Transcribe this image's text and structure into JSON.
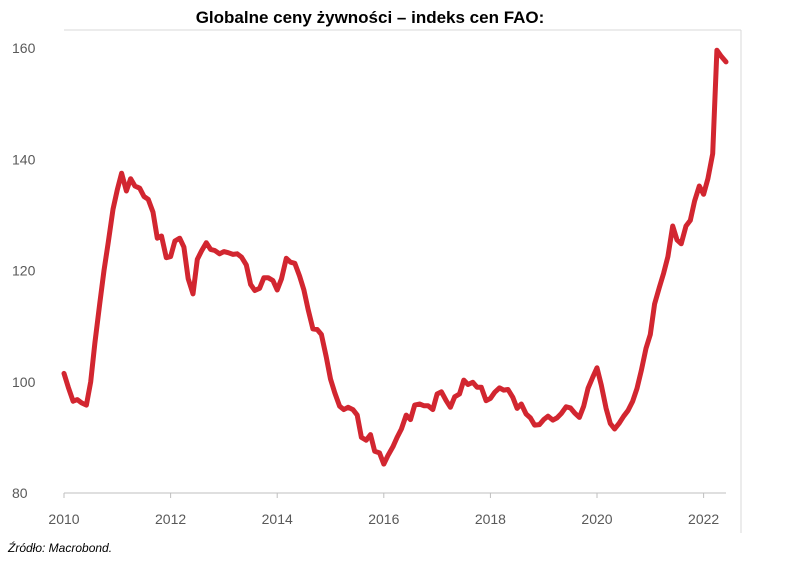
{
  "chart_data": {
    "type": "line",
    "title": "Globalne ceny żywności – indeks cen FAO:",
    "xlabel": "",
    "ylabel": "",
    "xlim": [
      2010.0,
      2022.42
    ],
    "ylim": [
      80,
      160
    ],
    "y_ticks": [
      80,
      100,
      120,
      140,
      160
    ],
    "x_ticks": [
      2010,
      2012,
      2014,
      2016,
      2018,
      2020,
      2022
    ],
    "grid": false,
    "legend": "none",
    "line_color": "#D22630",
    "series": [
      {
        "x": [
          2010.0,
          2010.08,
          2010.17,
          2010.25,
          2010.33,
          2010.42,
          2010.5,
          2010.58,
          2010.67,
          2010.75,
          2010.83,
          2010.92,
          2011.0,
          2011.08,
          2011.17,
          2011.25,
          2011.33,
          2011.42,
          2011.5,
          2011.58,
          2011.67,
          2011.75,
          2011.83,
          2011.92,
          2012.0,
          2012.08,
          2012.17,
          2012.25,
          2012.33,
          2012.42,
          2012.5,
          2012.58,
          2012.67,
          2012.75,
          2012.83,
          2012.92,
          2013.0,
          2013.08,
          2013.17,
          2013.25,
          2013.33,
          2013.42,
          2013.5,
          2013.58,
          2013.67,
          2013.75,
          2013.83,
          2013.92,
          2014.0,
          2014.08,
          2014.17,
          2014.25,
          2014.33,
          2014.42,
          2014.5,
          2014.58,
          2014.67,
          2014.75,
          2014.83,
          2014.92,
          2015.0,
          2015.08,
          2015.17,
          2015.25,
          2015.33,
          2015.42,
          2015.5,
          2015.58,
          2015.67,
          2015.75,
          2015.83,
          2015.92,
          2016.0,
          2016.08,
          2016.17,
          2016.25,
          2016.33,
          2016.42,
          2016.5,
          2016.58,
          2016.67,
          2016.75,
          2016.83,
          2016.92,
          2017.0,
          2017.08,
          2017.17,
          2017.25,
          2017.33,
          2017.42,
          2017.5,
          2017.58,
          2017.67,
          2017.75,
          2017.83,
          2017.92,
          2018.0,
          2018.08,
          2018.17,
          2018.25,
          2018.33,
          2018.42,
          2018.5,
          2018.58,
          2018.67,
          2018.75,
          2018.83,
          2018.92,
          2019.0,
          2019.08,
          2019.17,
          2019.25,
          2019.33,
          2019.42,
          2019.5,
          2019.58,
          2019.67,
          2019.75,
          2019.83,
          2019.92,
          2020.0,
          2020.08,
          2020.17,
          2020.25,
          2020.33,
          2020.42,
          2020.5,
          2020.58,
          2020.67,
          2020.75,
          2020.83,
          2020.92,
          2021.0,
          2021.08,
          2021.17,
          2021.25,
          2021.33,
          2021.42,
          2021.5,
          2021.58,
          2021.67,
          2021.75,
          2021.83,
          2021.92,
          2022.0,
          2022.08,
          2022.17,
          2022.25,
          2022.33,
          2022.42
        ],
        "y": [
          101.5,
          99.0,
          96.5,
          96.8,
          96.2,
          95.8,
          100.0,
          107.0,
          114.0,
          120.0,
          125.0,
          131.0,
          134.5,
          137.5,
          134.3,
          136.5,
          135.2,
          134.8,
          133.3,
          132.8,
          130.5,
          125.8,
          126.2,
          122.3,
          122.5,
          125.3,
          125.8,
          124.2,
          118.5,
          115.8,
          122.0,
          123.5,
          125.0,
          123.8,
          123.6,
          123.0,
          123.4,
          123.2,
          122.9,
          123.0,
          122.4,
          121.0,
          117.5,
          116.4,
          116.8,
          118.7,
          118.7,
          118.2,
          116.5,
          118.5,
          122.2,
          121.5,
          121.3,
          119.0,
          116.5,
          113.0,
          109.5,
          109.4,
          108.5,
          104.5,
          100.5,
          98.0,
          95.6,
          95.0,
          95.4,
          95.0,
          94.0,
          90.0,
          89.5,
          90.5,
          87.5,
          87.2,
          85.2,
          86.8,
          88.3,
          90.0,
          91.5,
          94.0,
          93.2,
          95.8,
          96.0,
          95.7,
          95.7,
          95.0,
          97.8,
          98.2,
          96.6,
          95.4,
          97.3,
          97.8,
          100.3,
          99.5,
          99.9,
          99.0,
          99.0,
          96.6,
          97.0,
          98.1,
          98.9,
          98.5,
          98.6,
          97.2,
          95.2,
          96.0,
          94.2,
          93.5,
          92.2,
          92.3,
          93.2,
          93.8,
          93.1,
          93.5,
          94.3,
          95.5,
          95.3,
          94.4,
          93.6,
          95.6,
          98.8,
          100.8,
          102.5,
          99.4,
          95.2,
          92.5,
          91.5,
          92.6,
          93.8,
          94.8,
          96.5,
          98.8,
          102.0,
          106.0,
          108.5,
          114.0,
          117.0,
          119.5,
          122.5,
          128.0,
          125.5,
          124.8,
          128.0,
          129.0,
          132.5,
          135.2,
          133.7,
          136.5,
          141.0,
          159.6,
          158.5,
          157.5
        ]
      }
    ]
  },
  "source": "Źródło: Macrobond."
}
